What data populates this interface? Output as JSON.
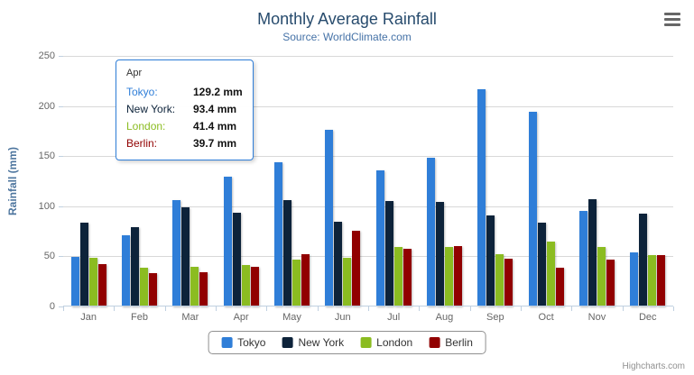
{
  "title": "Monthly Average Rainfall",
  "subtitle": "Source: WorldClimate.com",
  "credits": "Highcharts.com",
  "chart_data": {
    "type": "bar",
    "title": "Monthly Average Rainfall",
    "subtitle": "Source: WorldClimate.com",
    "categories": [
      "Jan",
      "Feb",
      "Mar",
      "Apr",
      "May",
      "Jun",
      "Jul",
      "Aug",
      "Sep",
      "Oct",
      "Nov",
      "Dec"
    ],
    "series": [
      {
        "name": "Tokyo",
        "color": "#2f7ed8",
        "values": [
          49.9,
          71.5,
          106.4,
          129.2,
          144.0,
          176.0,
          135.6,
          148.5,
          216.4,
          194.1,
          95.6,
          54.4
        ]
      },
      {
        "name": "New York",
        "color": "#0d233a",
        "values": [
          83.6,
          78.8,
          98.5,
          93.4,
          106.0,
          84.5,
          105.0,
          104.3,
          91.2,
          83.5,
          106.6,
          92.3
        ]
      },
      {
        "name": "London",
        "color": "#8bbc21",
        "values": [
          48.9,
          38.8,
          39.3,
          41.4,
          47.0,
          48.3,
          59.0,
          59.6,
          52.4,
          65.2,
          59.3,
          51.2
        ]
      },
      {
        "name": "Berlin",
        "color": "#910000",
        "values": [
          42.4,
          33.2,
          34.5,
          39.7,
          52.6,
          75.5,
          57.4,
          60.4,
          47.6,
          39.1,
          46.8,
          51.1
        ]
      }
    ],
    "xlabel": "",
    "ylabel": "Rainfall (mm)",
    "ylim": [
      0,
      250
    ],
    "yticks": [
      0,
      50,
      100,
      150,
      200,
      250
    ],
    "grid": true,
    "legend_position": "bottom"
  },
  "tooltip": {
    "header": "Apr",
    "border_color": "#2f7ed8",
    "rows": [
      {
        "label": "Tokyo:",
        "value": "129.2 mm",
        "color": "#2f7ed8"
      },
      {
        "label": "New York:",
        "value": "93.4 mm",
        "color": "#0d233a"
      },
      {
        "label": "London:",
        "value": "41.4 mm",
        "color": "#8bbc21"
      },
      {
        "label": "Berlin:",
        "value": "39.7 mm",
        "color": "#910000"
      }
    ]
  }
}
